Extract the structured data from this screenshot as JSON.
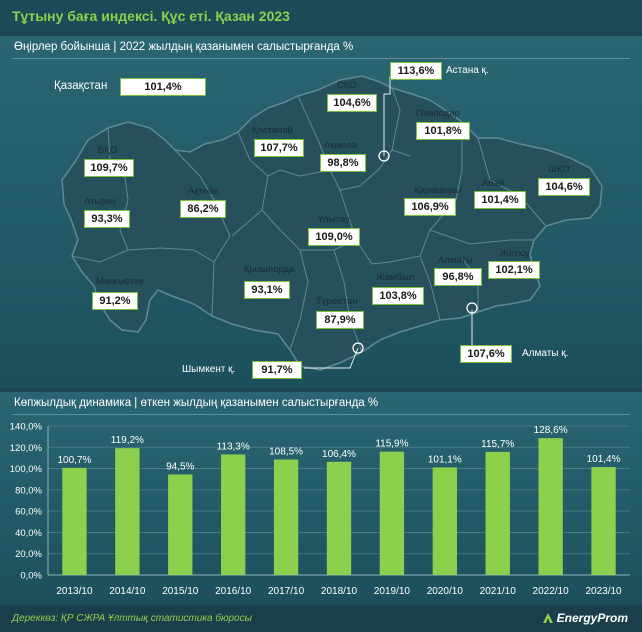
{
  "title": "Тұтыну баға индексі. Құс еті. Қазан 2023",
  "map_section": {
    "header": "Өңірлер бойынша | 2022 жылдың қазанымен салыстырғанда %",
    "kazakhstan": {
      "label": "Қазақстан",
      "value": "101,4%"
    },
    "regions": [
      {
        "name": "СҚО",
        "value": "104,6%"
      },
      {
        "name": "Павлодар",
        "value": "101,8%"
      },
      {
        "name": "Қостанай",
        "value": "107,7%"
      },
      {
        "name": "Ақмола",
        "value": "98,8%"
      },
      {
        "name": "БҚО",
        "value": "109,7%"
      },
      {
        "name": "Ақтөбе",
        "value": "86,2%"
      },
      {
        "name": "Атырау",
        "value": "93,3%"
      },
      {
        "name": "Қарағанды",
        "value": "106,9%"
      },
      {
        "name": "Абай",
        "value": "101,4%"
      },
      {
        "name": "ШҚО",
        "value": "104,6%"
      },
      {
        "name": "Ұлытау",
        "value": "109,0%"
      },
      {
        "name": "Жетісу",
        "value": "102,1%"
      },
      {
        "name": "Алматы",
        "value": "96,8%"
      },
      {
        "name": "Маңғыстау",
        "value": "91,2%"
      },
      {
        "name": "Қызылорда",
        "value": "93,1%"
      },
      {
        "name": "Жамбыл",
        "value": "103,8%"
      },
      {
        "name": "Түркістан",
        "value": "87,9%"
      }
    ],
    "cities": [
      {
        "name": "Астана қ.",
        "value": "113,6%"
      },
      {
        "name": "Алматы қ.",
        "value": "107,6%"
      },
      {
        "name": "Шымкент қ.",
        "value": "91,7%"
      }
    ]
  },
  "chart_section": {
    "header": "Көпжылдық динамика | өткен жылдың қазанымен салыстырғанда %"
  },
  "chart_data": {
    "type": "bar",
    "categories": [
      "2013/10",
      "2014/10",
      "2015/10",
      "2016/10",
      "2017/10",
      "2018/10",
      "2019/10",
      "2020/10",
      "2021/10",
      "2022/10",
      "2023/10"
    ],
    "values": [
      100.7,
      119.2,
      94.5,
      113.3,
      108.5,
      106.4,
      115.9,
      101.1,
      115.7,
      128.6,
      101.4
    ],
    "value_labels": [
      "100,7%",
      "119,2%",
      "94,5%",
      "113,3%",
      "108,5%",
      "106,4%",
      "115,9%",
      "101,1%",
      "115,7%",
      "128,6%",
      "101,4%"
    ],
    "yticks": [
      0,
      20,
      40,
      60,
      80,
      100,
      120,
      140
    ],
    "ytick_labels": [
      "0,0%",
      "20,0%",
      "40,0%",
      "60,0%",
      "80,0%",
      "100,0%",
      "120,0%",
      "140,0%"
    ],
    "ylim": [
      0,
      140
    ],
    "grid": true,
    "title": "",
    "xlabel": "",
    "ylabel": ""
  },
  "footer": {
    "source": "Дереккөз: ҚР СЖРА Ұлттық статистика бюросы",
    "logo": "EnergyProm"
  },
  "colors": {
    "accent_green": "#8dd04d",
    "bar_green": "#8dd04d",
    "map_fill": "#25505c",
    "label_border": "#7bbf3c"
  }
}
